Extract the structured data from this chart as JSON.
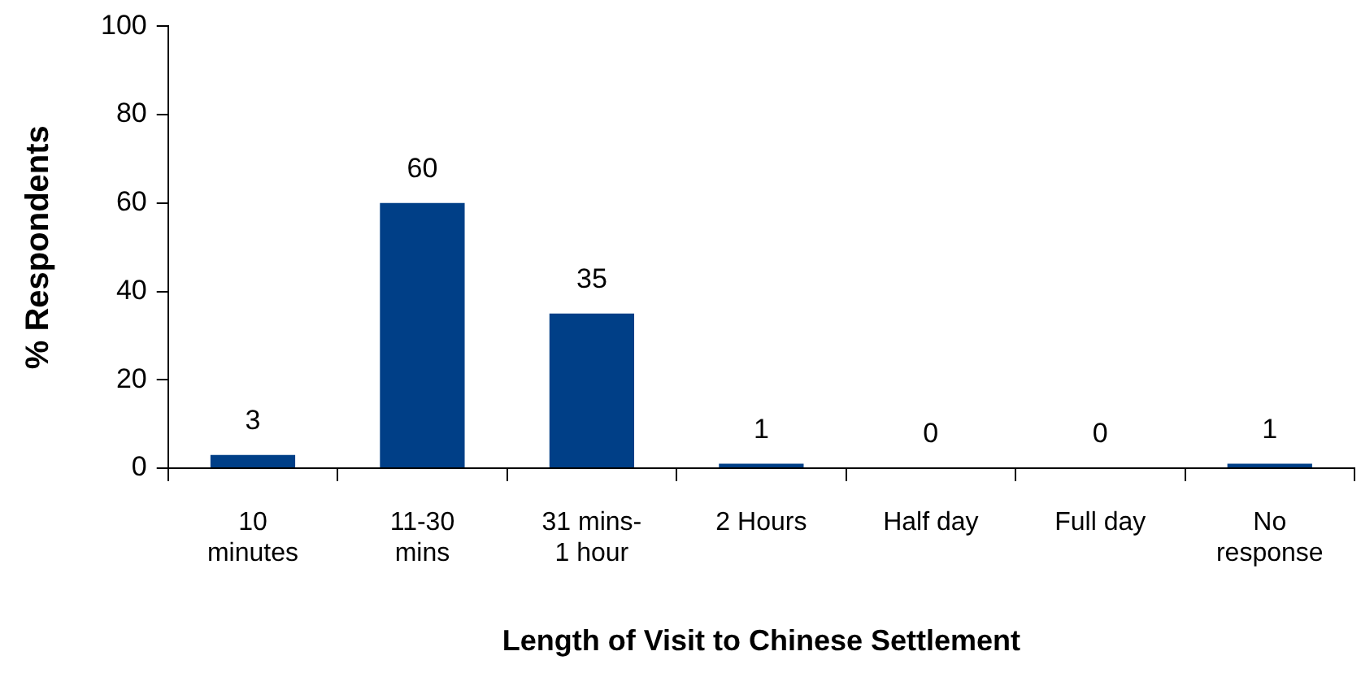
{
  "chart_data": {
    "type": "bar",
    "xlabel": "Length of Visit to Chinese Settlement",
    "ylabel": "% Respondents",
    "categories": [
      "10 minutes",
      "11-30 mins",
      "31 mins- 1 hour",
      "2 Hours",
      "Half day",
      "Full day",
      "No response"
    ],
    "values": [
      3,
      60,
      35,
      1,
      0,
      0,
      1
    ],
    "color": "#003f87",
    "ylim": [
      0,
      100
    ],
    "yticks": [
      0,
      20,
      40,
      60,
      80,
      100
    ],
    "grid": false,
    "legend": false,
    "data_labels": true
  }
}
